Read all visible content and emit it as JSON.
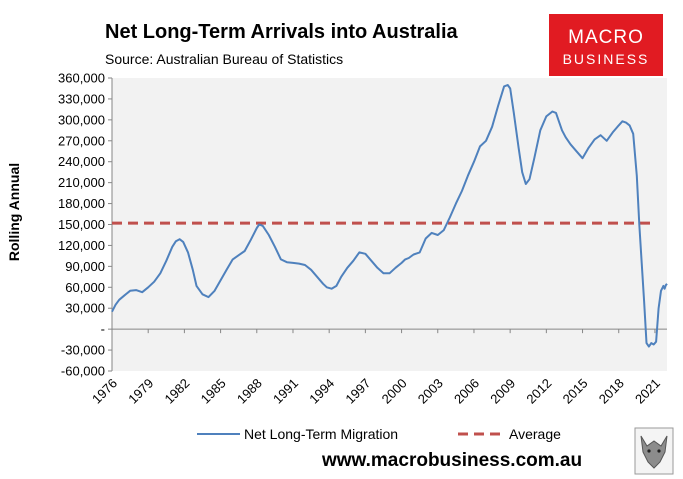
{
  "chart_data": {
    "type": "line",
    "title": "Net Long-Term Arrivals into Australia",
    "subtitle": "Source: Australian Bureau of Statistics",
    "ylabel": "Rolling Annual",
    "xlabel": "",
    "ylim": [
      -60000,
      360000
    ],
    "xlim": [
      1976,
      2022
    ],
    "y_ticks": [
      {
        "value": -60000,
        "label": "-60,000"
      },
      {
        "value": -30000,
        "label": "-30,000"
      },
      {
        "value": 0,
        "label": "-"
      },
      {
        "value": 30000,
        "label": "30,000"
      },
      {
        "value": 60000,
        "label": "60,000"
      },
      {
        "value": 90000,
        "label": "90,000"
      },
      {
        "value": 120000,
        "label": "120,000"
      },
      {
        "value": 150000,
        "label": "150,000"
      },
      {
        "value": 180000,
        "label": "180,000"
      },
      {
        "value": 210000,
        "label": "210,000"
      },
      {
        "value": 240000,
        "label": "240,000"
      },
      {
        "value": 270000,
        "label": "270,000"
      },
      {
        "value": 300000,
        "label": "300,000"
      },
      {
        "value": 330000,
        "label": "330,000"
      },
      {
        "value": 360000,
        "label": "360,000"
      }
    ],
    "x_ticks": [
      {
        "value": 1976,
        "label": "1976"
      },
      {
        "value": 1979,
        "label": "1979"
      },
      {
        "value": 1982,
        "label": "1982"
      },
      {
        "value": 1985,
        "label": "1985"
      },
      {
        "value": 1988,
        "label": "1988"
      },
      {
        "value": 1991,
        "label": "1991"
      },
      {
        "value": 1994,
        "label": "1994"
      },
      {
        "value": 1997,
        "label": "1997"
      },
      {
        "value": 2000,
        "label": "2000"
      },
      {
        "value": 2003,
        "label": "2003"
      },
      {
        "value": 2006,
        "label": "2006"
      },
      {
        "value": 2009,
        "label": "2009"
      },
      {
        "value": 2012,
        "label": "2012"
      },
      {
        "value": 2015,
        "label": "2015"
      },
      {
        "value": 2018,
        "label": "2018"
      },
      {
        "value": 2021,
        "label": "2021"
      }
    ],
    "series": [
      {
        "name": "Net Long-Term Migration",
        "color": "#4F81BD",
        "style": "solid",
        "x": [
          1976.0,
          1976.3,
          1976.6,
          1977.0,
          1977.5,
          1978.0,
          1978.5,
          1979.0,
          1979.5,
          1980.0,
          1980.5,
          1981.0,
          1981.3,
          1981.6,
          1981.9,
          1982.3,
          1982.7,
          1983.0,
          1983.5,
          1984.0,
          1984.5,
          1985.0,
          1985.5,
          1986.0,
          1986.5,
          1987.0,
          1987.5,
          1988.0,
          1988.2,
          1988.5,
          1989.0,
          1989.5,
          1990.0,
          1990.5,
          1991.0,
          1991.5,
          1992.0,
          1992.5,
          1993.0,
          1993.5,
          1993.8,
          1994.2,
          1994.6,
          1995.0,
          1995.5,
          1996.0,
          1996.5,
          1997.0,
          1997.5,
          1998.0,
          1998.5,
          1999.0,
          1999.5,
          2000.0,
          2000.3,
          2000.6,
          2001.0,
          2001.5,
          2002.0,
          2002.5,
          2003.0,
          2003.5,
          2004.0,
          2004.5,
          2005.0,
          2005.5,
          2006.0,
          2006.5,
          2007.0,
          2007.5,
          2008.0,
          2008.5,
          2008.8,
          2009.0,
          2009.3,
          2009.7,
          2010.0,
          2010.3,
          2010.6,
          2011.0,
          2011.5,
          2012.0,
          2012.5,
          2012.8,
          2013.0,
          2013.3,
          2013.6,
          2014.0,
          2014.5,
          2015.0,
          2015.5,
          2016.0,
          2016.5,
          2017.0,
          2017.5,
          2018.0,
          2018.3,
          2018.6,
          2018.9,
          2019.2,
          2019.5,
          2019.7,
          2019.9,
          2020.1,
          2020.3,
          2020.5,
          2020.7,
          2020.9,
          2021.1,
          2021.3,
          2021.5,
          2021.7,
          2021.8,
          2021.9,
          2022.0
        ],
        "y": [
          25000,
          35000,
          42000,
          48000,
          55000,
          56000,
          53000,
          60000,
          68000,
          80000,
          98000,
          118000,
          126000,
          129000,
          125000,
          110000,
          85000,
          62000,
          50000,
          46000,
          55000,
          70000,
          85000,
          100000,
          106000,
          112000,
          128000,
          145000,
          150000,
          148000,
          135000,
          118000,
          100000,
          96000,
          95000,
          94000,
          92000,
          85000,
          75000,
          65000,
          60000,
          58000,
          62000,
          75000,
          88000,
          98000,
          110000,
          108000,
          98000,
          88000,
          80000,
          80000,
          88000,
          95000,
          100000,
          102000,
          107000,
          110000,
          130000,
          138000,
          135000,
          142000,
          160000,
          180000,
          198000,
          220000,
          240000,
          262000,
          270000,
          290000,
          320000,
          348000,
          350000,
          345000,
          310000,
          260000,
          225000,
          208000,
          215000,
          245000,
          285000,
          305000,
          312000,
          310000,
          300000,
          285000,
          275000,
          265000,
          255000,
          245000,
          260000,
          272000,
          278000,
          270000,
          282000,
          292000,
          298000,
          296000,
          292000,
          280000,
          220000,
          150000,
          95000,
          40000,
          -20000,
          -25000,
          -20000,
          -22000,
          -18000,
          30000,
          55000,
          62000,
          58000,
          63000,
          65000
        ]
      },
      {
        "name": "Average",
        "color": "#C0504D",
        "style": "dashed",
        "x": [
          1976,
          2021
        ],
        "y": [
          152000,
          152000
        ]
      }
    ],
    "legend": "bottom",
    "grid": false
  },
  "branding": {
    "logo_line1": "MACRO",
    "logo_line2": "BUSINESS",
    "website": "www.macrobusiness.com.au",
    "logo_color": "#E11B22"
  }
}
